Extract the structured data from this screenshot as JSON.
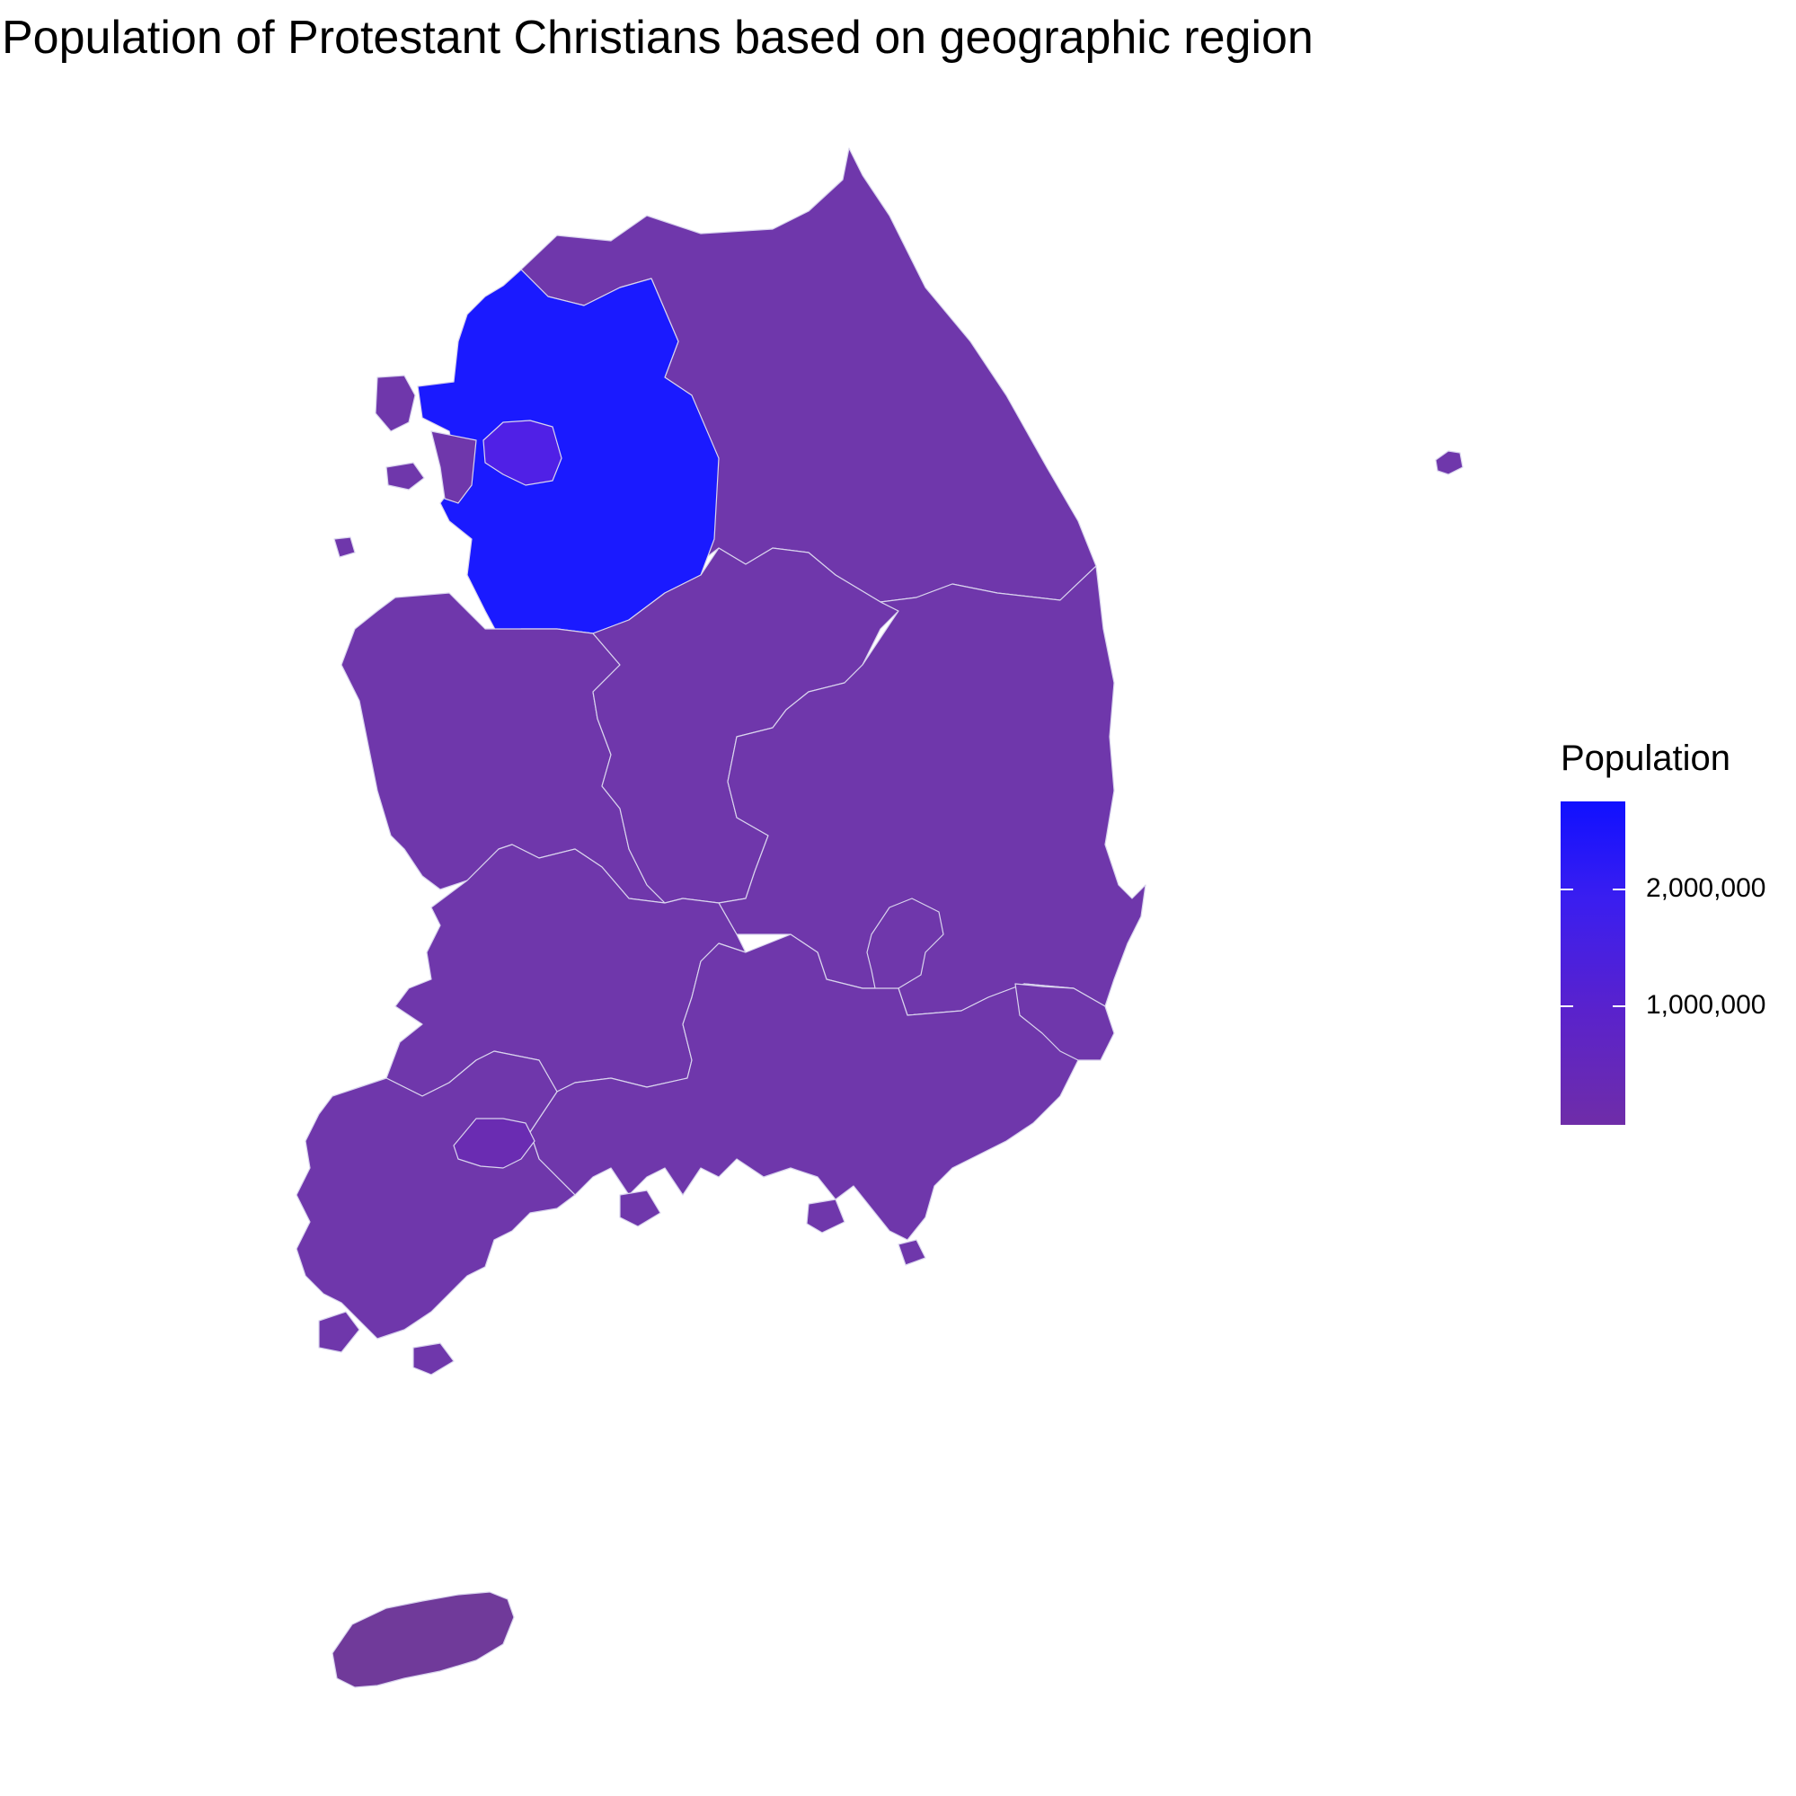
{
  "title": "Population of Protestant Christians based on geographic region",
  "legend": {
    "title": "Population",
    "labels": [
      "2,000,000",
      "1,000,000"
    ],
    "gradient_colors": [
      "#1010ff",
      "#3a1ef0",
      "#5a22cc",
      "#6f2da8"
    ]
  },
  "chart_data": {
    "type": "choropleth",
    "colors": {
      "gyeonggi_seoul": "#1a1aff",
      "seoul_inner": "#5020e6",
      "default_region": "#6f37ab",
      "gwangju": "#6a2cb2",
      "jeju": "#703a9a"
    },
    "scale": {
      "min_label": "1,000,000",
      "max_label": "2,000,000"
    }
  }
}
